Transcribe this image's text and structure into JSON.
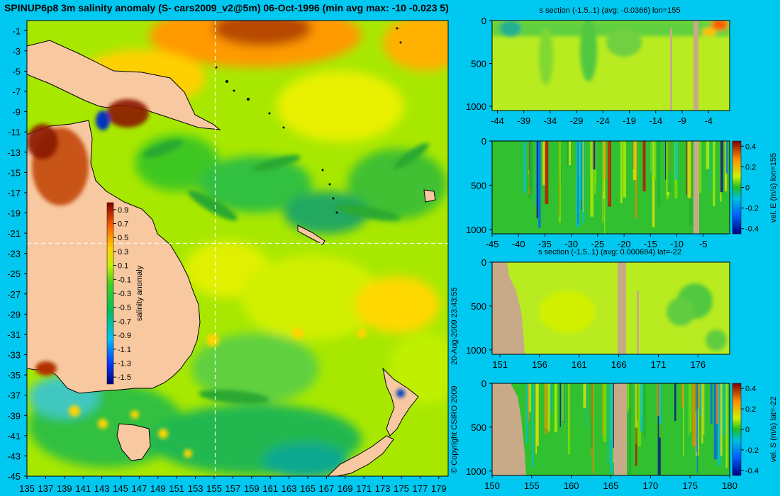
{
  "title": "SPINUP6p8 3m salinity anomaly (S- cars2009_v2@5m) 06-Oct-1996 (min avg max: -10 -0.023 5)",
  "copyright": "© Copyright CSIRO 2009",
  "timestamp": "20-Aug-2009 23:43:55",
  "colors": {
    "background": "#00c8f0",
    "land": "#f8c9a0",
    "section_land": "#c8aa88",
    "ocean_base": "#a8e800",
    "crosshair": "#ffffff"
  },
  "chart_data": [
    {
      "type": "heatmap",
      "name": "salinity anomaly map",
      "x_ticks": [
        "135",
        "137",
        "139",
        "141",
        "143",
        "145",
        "147",
        "149",
        "151",
        "153",
        "155",
        "157",
        "159",
        "161",
        "163",
        "165",
        "167",
        "169",
        "171",
        "173",
        "175",
        "177",
        "179"
      ],
      "y_ticks": [
        "-1",
        "-3",
        "-5",
        "-7",
        "-9",
        "-11",
        "-13",
        "-15",
        "-17",
        "-19",
        "-21",
        "-23",
        "-25",
        "-27",
        "-29",
        "-31",
        "-33",
        "-35",
        "-37",
        "-39",
        "-41",
        "-43",
        "-45"
      ],
      "xlim": [
        135,
        180
      ],
      "ylim": [
        -45,
        0
      ],
      "crosshair": {
        "lon": 155,
        "lat": -22
      },
      "colorbar": {
        "label": "salinity anomaly",
        "ticks": [
          "0.9",
          "0.7",
          "0.5",
          "0.3",
          "0.1",
          "-0.1",
          "-0.3",
          "-0.5",
          "-0.7",
          "-0.9",
          "-1.1",
          "-1.3",
          "-1.5"
        ],
        "range": [
          -1.6,
          1.0
        ]
      }
    },
    {
      "type": "heatmap",
      "name": "s section lon 155",
      "title": "s section (-1.5..1) (avg: -0.0366) lon=155",
      "x_ticks": [
        "-44",
        "-39",
        "-34",
        "-29",
        "-24",
        "-19",
        "-14",
        "-9",
        "-4"
      ],
      "xlim": [
        -45,
        0
      ],
      "y_ticks": [
        "0",
        "500",
        "1000"
      ],
      "ylim": [
        0,
        1050
      ]
    },
    {
      "type": "heatmap",
      "name": "vel E section lon 155",
      "x_ticks": [
        "-45",
        "-40",
        "-35",
        "-30",
        "-25",
        "-20",
        "-15",
        "-10",
        "-5"
      ],
      "xlim": [
        -45,
        0
      ],
      "y_ticks": [
        "0",
        "500",
        "1000"
      ],
      "ylim": [
        0,
        1050
      ],
      "colorbar": {
        "label": "vel. E (m/s) lon=155",
        "ticks": [
          "0.4",
          "0.2",
          "0",
          "-0.2",
          "-0.4"
        ],
        "range": [
          -0.45,
          0.45
        ]
      }
    },
    {
      "type": "heatmap",
      "name": "s section lat -22",
      "title": "s section (-1.5..1) (avg: 0.000694) lat=-22",
      "x_ticks": [
        "151",
        "156",
        "161",
        "166",
        "171",
        "176"
      ],
      "xlim": [
        150,
        180
      ],
      "y_ticks": [
        "0",
        "500",
        "1000"
      ],
      "ylim": [
        0,
        1050
      ]
    },
    {
      "type": "heatmap",
      "name": "vel S section lat -22",
      "x_ticks": [
        "150",
        "155",
        "160",
        "165",
        "170",
        "175",
        "180"
      ],
      "xlim": [
        150,
        180
      ],
      "y_ticks": [
        "0",
        "500",
        "1000"
      ],
      "ylim": [
        0,
        1050
      ],
      "colorbar": {
        "label": "vel. S (m/s) lat=-22",
        "ticks": [
          "0.4",
          "0.2",
          "0",
          "-0.2",
          "-0.4"
        ],
        "range": [
          -0.45,
          0.45
        ]
      }
    }
  ]
}
